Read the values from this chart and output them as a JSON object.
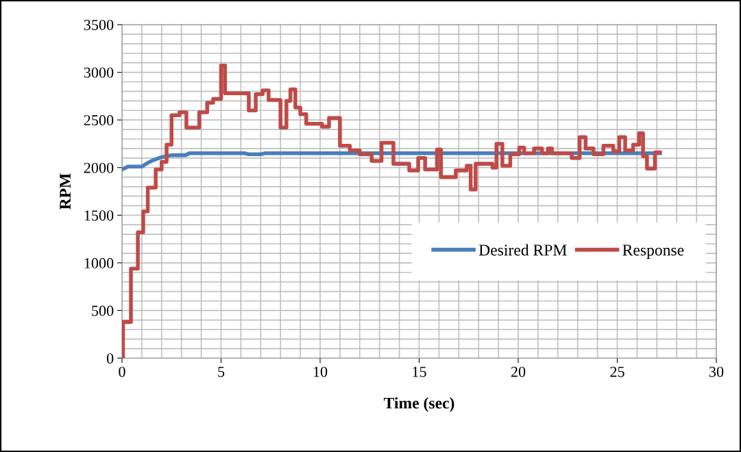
{
  "chart_data": {
    "type": "line",
    "xlabel": "Time (sec)",
    "ylabel": "RPM",
    "xlim": [
      0,
      30
    ],
    "xticks": [
      0,
      5,
      10,
      15,
      20,
      25,
      30
    ],
    "ylim": [
      0,
      3500
    ],
    "yticks": [
      0,
      500,
      1000,
      1500,
      2000,
      2500,
      3000,
      3500
    ],
    "grid": true,
    "legend": "right",
    "marker": "none",
    "line_style": "solid",
    "series": [
      {
        "name": "Desired RPM",
        "color": "#4a7ebb",
        "x": [
          0,
          0.3,
          1.0,
          1.3,
          1.6,
          2.0,
          2.5,
          3.2,
          3.4,
          6.2,
          6.4,
          7.0,
          7.2,
          27.15
        ],
        "values": [
          1980,
          2010,
          2010,
          2050,
          2080,
          2110,
          2130,
          2130,
          2150,
          2150,
          2140,
          2140,
          2150,
          2150
        ]
      },
      {
        "name": "Response",
        "color": "#be4b48",
        "type": "step",
        "x": [
          0,
          0.05,
          0.45,
          0.8,
          1.07,
          1.3,
          1.7,
          2.0,
          2.25,
          2.5,
          2.9,
          3.25,
          3.9,
          4.3,
          4.6,
          5.0,
          5.2,
          6.4,
          6.75,
          7.1,
          7.4,
          8.0,
          8.3,
          8.5,
          8.75,
          9.0,
          9.3,
          10.1,
          10.45,
          11.0,
          11.5,
          12.0,
          12.6,
          13.1,
          13.7,
          14.5,
          14.95,
          15.3,
          15.9,
          16.1,
          16.85,
          17.4,
          17.6,
          17.85,
          18.7,
          18.9,
          19.2,
          19.6,
          20.05,
          20.3,
          20.8,
          21.2,
          21.5,
          21.7,
          22.7,
          23.1,
          23.4,
          23.8,
          24.3,
          24.8,
          25.1,
          25.4,
          25.8,
          26.1,
          26.3,
          26.5,
          26.9,
          27.15
        ],
        "values": [
          0,
          380,
          940,
          1320,
          1540,
          1790,
          1980,
          2060,
          2240,
          2550,
          2580,
          2420,
          2580,
          2680,
          2720,
          3070,
          2780,
          2600,
          2770,
          2810,
          2710,
          2420,
          2700,
          2820,
          2630,
          2560,
          2460,
          2430,
          2520,
          2230,
          2180,
          2140,
          2070,
          2260,
          2040,
          1970,
          2100,
          1980,
          2190,
          1900,
          1970,
          2020,
          1770,
          2040,
          2000,
          2250,
          2020,
          2140,
          2210,
          2150,
          2200,
          2150,
          2200,
          2150,
          2100,
          2320,
          2200,
          2140,
          2230,
          2170,
          2320,
          2180,
          2240,
          2360,
          2120,
          1990,
          2160,
          2160
        ]
      }
    ]
  }
}
